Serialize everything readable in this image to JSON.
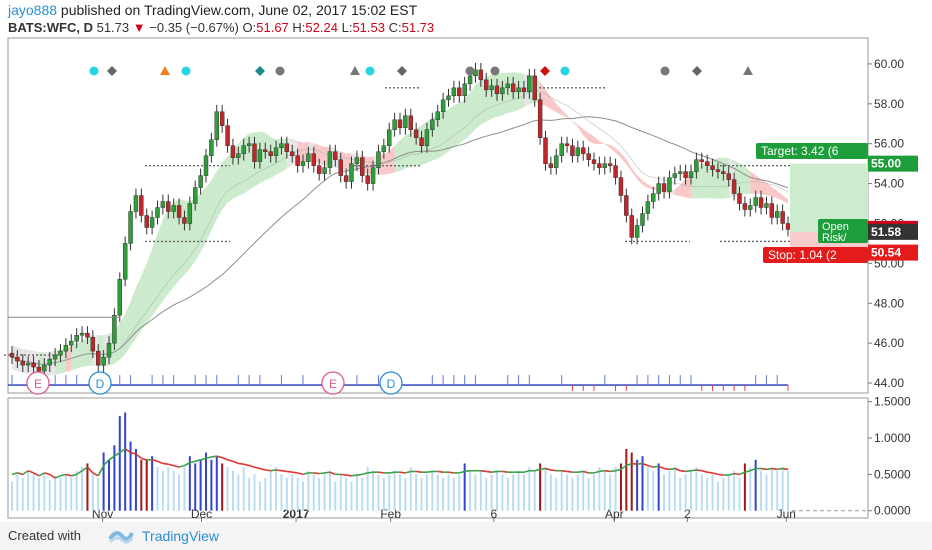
{
  "header": {
    "user": "jayo888",
    "published_text": " published on TradingView.com, June 02, 2017 15:02 EST",
    "symbol": "BATS:WFC, D",
    "last": "51.73",
    "change": "−0.35 (−0.67%)",
    "o_label": "O:",
    "o_value": "51.67",
    "h_label": "H:",
    "h_value": "52.24",
    "l_label": "L:",
    "l_value": "51.53",
    "c_label": "C:",
    "c_value": "51.73"
  },
  "footer": {
    "created_with": "Created with",
    "brand": "TradingView"
  },
  "chart_data": {
    "type": "candlestick",
    "price_axis": {
      "range": [
        43.5,
        61.3
      ],
      "ticks": [
        "60.00",
        "58.00",
        "56.00",
        "54.00",
        "52.00",
        "50.00",
        "48.00",
        "46.00",
        "44.00"
      ]
    },
    "volume_axis": {
      "range": [
        -0.1,
        1.55
      ],
      "ticks": [
        "1.5000",
        "1.0000",
        "0.5000",
        "0.0000"
      ]
    },
    "time_labels": [
      "Nov",
      "Dec",
      "2017",
      "Feb",
      "6",
      "Apr",
      "2",
      "Jun"
    ],
    "price_labels": {
      "target": "Target: 3.42 (6",
      "target_price": "55.00",
      "open_risk": [
        "Open",
        "Risk/"
      ],
      "last_price": "51.73",
      "entry_price": "51.58",
      "stop": "Stop: 1.04 (2",
      "stop_price": "50.54"
    },
    "event_markers": [
      "E",
      "D",
      "E",
      "D"
    ],
    "trade_levels": {
      "target": 55.0,
      "entry": 51.58,
      "stop": 50.54,
      "last": 51.73
    },
    "closes": [
      45.3,
      45.1,
      44.9,
      45.0,
      44.8,
      44.6,
      44.9,
      45.2,
      45.4,
      45.6,
      45.9,
      46.1,
      46.4,
      46.5,
      46.3,
      45.6,
      44.9,
      45.3,
      46.0,
      47.4,
      49.2,
      51.0,
      52.6,
      53.4,
      52.4,
      51.8,
      52.3,
      52.8,
      53.1,
      52.6,
      52.9,
      52.3,
      52.0,
      53.0,
      53.8,
      54.4,
      55.4,
      56.2,
      57.6,
      56.9,
      55.9,
      55.3,
      55.5,
      55.9,
      56.0,
      55.1,
      55.7,
      55.6,
      55.4,
      55.8,
      56.0,
      55.6,
      55.4,
      54.9,
      55.1,
      55.5,
      54.9,
      54.5,
      54.8,
      55.6,
      55.2,
      54.4,
      54.1,
      55.0,
      55.3,
      54.4,
      54.0,
      54.8,
      55.6,
      55.9,
      56.7,
      57.2,
      56.8,
      57.4,
      56.7,
      56.3,
      55.9,
      56.7,
      57.2,
      57.6,
      58.2,
      58.4,
      58.8,
      58.4,
      59.0,
      59.4,
      59.7,
      59.2,
      58.7,
      58.9,
      58.5,
      58.8,
      59.0,
      58.6,
      58.8,
      58.6,
      59.4,
      58.2,
      56.3,
      55.0,
      54.8,
      55.4,
      56.0,
      55.9,
      55.4,
      55.8,
      55.5,
      55.2,
      55.0,
      54.8,
      55.0,
      54.9,
      54.3,
      53.4,
      52.4,
      51.3,
      51.9,
      52.5,
      53.1,
      53.5,
      54.0,
      53.6,
      54.3,
      54.5,
      54.6,
      54.3,
      54.6,
      55.2,
      55.1,
      54.9,
      54.7,
      54.6,
      54.5,
      54.2,
      53.5,
      53.0,
      52.7,
      52.9,
      53.3,
      52.8,
      53.0,
      52.3,
      52.6,
      52.0,
      51.7
    ],
    "volume": [
      0.4,
      0.5,
      0.45,
      0.55,
      0.5,
      0.45,
      0.5,
      0.42,
      0.48,
      0.45,
      0.5,
      0.46,
      0.55,
      0.6,
      0.65,
      0.5,
      0.45,
      0.8,
      0.7,
      0.9,
      1.3,
      1.35,
      0.95,
      0.85,
      0.7,
      0.7,
      0.75,
      0.6,
      0.55,
      0.6,
      0.55,
      0.5,
      0.6,
      0.75,
      0.65,
      0.7,
      0.8,
      0.7,
      0.75,
      0.65,
      0.6,
      0.55,
      0.5,
      0.6,
      0.45,
      0.5,
      0.4,
      0.45,
      0.55,
      0.6,
      0.5,
      0.45,
      0.5,
      0.45,
      0.4,
      0.55,
      0.5,
      0.45,
      0.5,
      0.55,
      0.4,
      0.5,
      0.45,
      0.4,
      0.5,
      0.45,
      0.6,
      0.55,
      0.5,
      0.45,
      0.5,
      0.55,
      0.5,
      0.45,
      0.6,
      0.5,
      0.45,
      0.5,
      0.55,
      0.5,
      0.45,
      0.5,
      0.45,
      0.5,
      0.65,
      0.55,
      0.5,
      0.55,
      0.45,
      0.5,
      0.55,
      0.5,
      0.45,
      0.5,
      0.55,
      0.5,
      0.6,
      0.55,
      0.65,
      0.6,
      0.5,
      0.45,
      0.55,
      0.5,
      0.45,
      0.5,
      0.55,
      0.45,
      0.5,
      0.6,
      0.55,
      0.5,
      0.6,
      0.65,
      0.85,
      0.8,
      0.7,
      0.75,
      0.6,
      0.55,
      0.65,
      0.5,
      0.55,
      0.6,
      0.45,
      0.5,
      0.55,
      0.6,
      0.5,
      0.45,
      0.5,
      0.4,
      0.45,
      0.5,
      0.55,
      0.45,
      0.65,
      0.6,
      0.7,
      0.55,
      0.5,
      0.6,
      0.55,
      0.6,
      0.55
    ],
    "volume_ma": [
      0.5,
      0.52,
      0.5,
      0.55,
      0.52,
      0.48,
      0.52,
      0.5,
      0.45,
      0.48,
      0.5,
      0.48,
      0.5,
      0.55,
      0.6,
      0.52,
      0.48,
      0.62,
      0.7,
      0.75,
      0.8,
      0.85,
      0.8,
      0.78,
      0.72,
      0.7,
      0.7,
      0.68,
      0.65,
      0.64,
      0.62,
      0.6,
      0.62,
      0.66,
      0.68,
      0.7,
      0.72,
      0.74,
      0.75,
      0.73,
      0.7,
      0.68,
      0.65,
      0.64,
      0.62,
      0.6,
      0.58,
      0.56,
      0.55,
      0.56,
      0.55,
      0.54,
      0.53,
      0.52,
      0.5,
      0.52,
      0.52,
      0.51,
      0.52,
      0.53,
      0.5,
      0.5,
      0.49,
      0.48,
      0.49,
      0.5,
      0.52,
      0.53,
      0.53,
      0.52,
      0.52,
      0.53,
      0.53,
      0.52,
      0.54,
      0.54,
      0.53,
      0.53,
      0.54,
      0.54,
      0.53,
      0.53,
      0.52,
      0.52,
      0.54,
      0.55,
      0.55,
      0.55,
      0.54,
      0.53,
      0.54,
      0.54,
      0.53,
      0.53,
      0.53,
      0.53,
      0.55,
      0.55,
      0.57,
      0.58,
      0.56,
      0.55,
      0.55,
      0.54,
      0.53,
      0.53,
      0.54,
      0.52,
      0.52,
      0.54,
      0.55,
      0.54,
      0.55,
      0.57,
      0.62,
      0.65,
      0.64,
      0.65,
      0.62,
      0.6,
      0.61,
      0.58,
      0.57,
      0.58,
      0.55,
      0.54,
      0.55,
      0.56,
      0.55,
      0.53,
      0.52,
      0.5,
      0.49,
      0.49,
      0.51,
      0.5,
      0.53,
      0.55,
      0.58,
      0.58,
      0.57,
      0.58,
      0.57,
      0.58,
      0.57
    ]
  }
}
